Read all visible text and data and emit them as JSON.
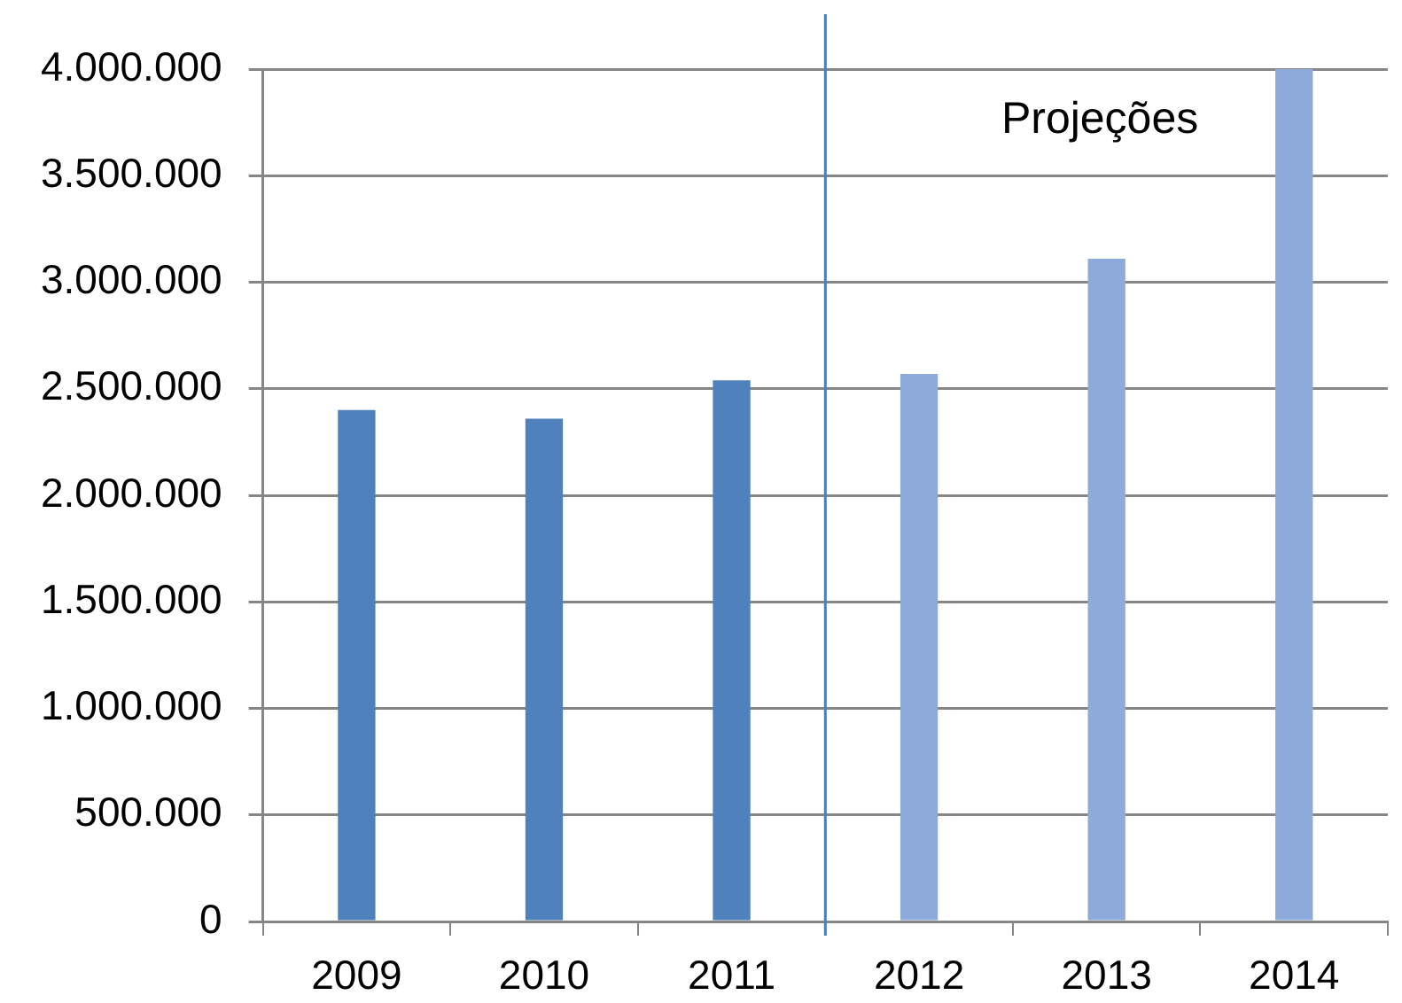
{
  "chart_data": {
    "type": "bar",
    "x": [
      2009,
      2010,
      2011,
      2012,
      2013,
      2014
    ],
    "values": [
      2400000,
      2360000,
      2540000,
      2570000,
      3110000,
      4000000
    ],
    "colors": [
      "#4f81bd",
      "#4f81bd",
      "#4f81bd",
      "#8eaadb",
      "#8eaadb",
      "#8eaadb"
    ],
    "xlim": [
      2008.5,
      2014.5
    ],
    "xticks": [
      {
        "value": 2008.5,
        "label": null
      },
      2009,
      {
        "value": 2009.5,
        "label": null
      },
      2010,
      {
        "value": 2010.5,
        "label": null
      },
      2011,
      {
        "value": 2011.5,
        "label": null
      },
      2012,
      {
        "value": 2012.5,
        "label": null
      },
      2013,
      {
        "value": 2013.5,
        "label": null
      },
      2014,
      {
        "value": 2014.5,
        "label": null
      }
    ],
    "ylim": [
      0,
      4000000
    ],
    "yticks": [
      0,
      {
        "value": 500000,
        "label": "500.000"
      },
      {
        "value": 1000000,
        "label": "1.000.000"
      },
      {
        "value": 1500000,
        "label": "1.500.000"
      },
      {
        "value": 2000000,
        "label": "2.000.000"
      },
      {
        "value": 2500000,
        "label": "2.500.000"
      },
      {
        "value": 3000000,
        "label": "3.000.000"
      },
      {
        "value": 3500000,
        "label": "3.500.000"
      },
      {
        "value": 4000000,
        "label": "4.000.000"
      }
    ],
    "grid": "y",
    "legend": false,
    "ref_lines": [
      {
        "axis": "x",
        "value": 2011.5,
        "color": "#4a7ebb"
      }
    ],
    "annotations": [
      "Projeções"
    ]
  }
}
